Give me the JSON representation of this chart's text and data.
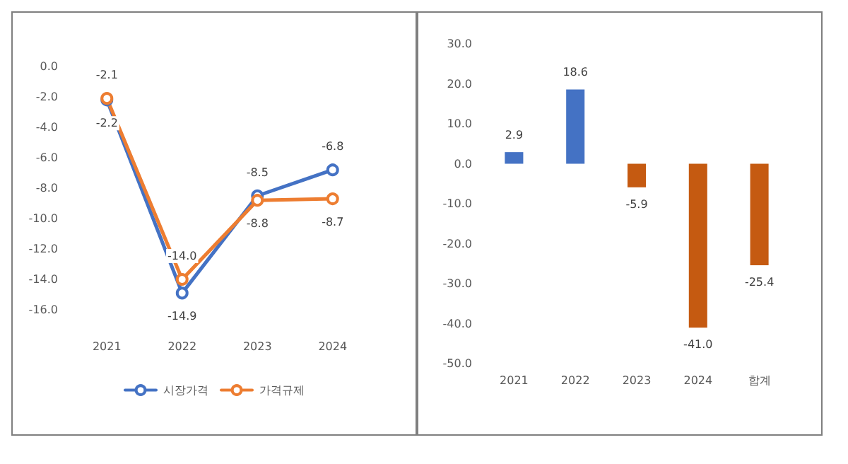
{
  "chart_data": [
    {
      "type": "line",
      "categories": [
        "2021",
        "2022",
        "2023",
        "2024"
      ],
      "series": [
        {
          "name": "시장가격",
          "color": "#4472c4",
          "values": [
            -2.2,
            -14.9,
            -8.5,
            -6.8
          ],
          "value_labels": [
            "-2.2",
            "-14.9",
            "-8.5",
            "-6.8"
          ]
        },
        {
          "name": "가격규제",
          "color": "#ed7d31",
          "values": [
            -2.1,
            -14.0,
            -8.8,
            -8.7
          ],
          "value_labels": [
            "-2.1",
            "-14.0",
            "-8.8",
            "-8.7"
          ]
        }
      ],
      "ylim": [
        -16,
        0
      ],
      "yticks": [
        {
          "value": 0,
          "label": "0.0"
        },
        {
          "value": -2,
          "label": "-2.0"
        },
        {
          "value": -4,
          "label": "-4.0"
        },
        {
          "value": -6,
          "label": "-6.0"
        },
        {
          "value": -8,
          "label": "-8.0"
        },
        {
          "value": -10,
          "label": "-10.0"
        },
        {
          "value": -12,
          "label": "-12.0"
        },
        {
          "value": -14,
          "label": "-14.0"
        },
        {
          "value": -16,
          "label": "-16.0"
        }
      ],
      "marker": "circle",
      "legend": "bottom",
      "grid": false
    },
    {
      "type": "bar",
      "categories": [
        "2021",
        "2022",
        "2023",
        "2024",
        "합계"
      ],
      "values": [
        2.9,
        18.6,
        -5.9,
        -41.0,
        -25.4
      ],
      "colors": [
        "#4472c4",
        "#4472c4",
        "#c55a11",
        "#c55a11",
        "#c55a11"
      ],
      "value_labels": [
        "2.9",
        "18.6",
        "-5.9",
        "-41.0",
        "-25.4"
      ],
      "ylim": [
        -50,
        30
      ],
      "yticks": [
        {
          "value": 30,
          "label": "30.0"
        },
        {
          "value": 20,
          "label": "20.0"
        },
        {
          "value": 10,
          "label": "10.0"
        },
        {
          "value": 0,
          "label": "0.0"
        },
        {
          "value": -10,
          "label": "-10.0"
        },
        {
          "value": -20,
          "label": "-20.0"
        },
        {
          "value": -30,
          "label": "-30.0"
        },
        {
          "value": -40,
          "label": "-40.0"
        },
        {
          "value": -50,
          "label": "-50.0"
        }
      ],
      "grid": false
    }
  ]
}
